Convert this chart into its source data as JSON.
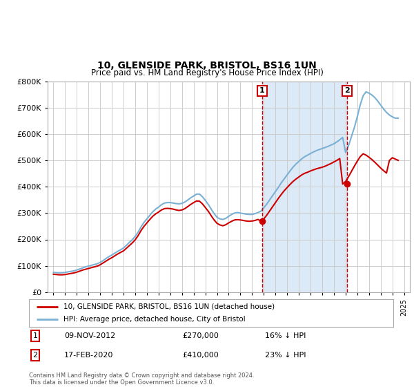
{
  "title": "10, GLENSIDE PARK, BRISTOL, BS16 1UN",
  "subtitle": "Price paid vs. HM Land Registry's House Price Index (HPI)",
  "legend_label_red": "10, GLENSIDE PARK, BRISTOL, BS16 1UN (detached house)",
  "legend_label_blue": "HPI: Average price, detached house, City of Bristol",
  "footnote": "Contains HM Land Registry data © Crown copyright and database right 2024.\nThis data is licensed under the Open Government Licence v3.0.",
  "sale1_date_label": "09-NOV-2012",
  "sale1_price": 270000,
  "sale1_pct": "16% ↓ HPI",
  "sale1_year": 2012.86,
  "sale2_date_label": "17-FEB-2020",
  "sale2_price": 410000,
  "sale2_pct": "23% ↓ HPI",
  "sale2_year": 2020.12,
  "ylim": [
    0,
    800000
  ],
  "xlim_left": 1994.5,
  "xlim_right": 2025.5,
  "background_color": "#ffffff",
  "plot_bg_color": "#ffffff",
  "grid_color": "#cccccc",
  "shade_color": "#dce9f7",
  "red_line_color": "#cc0000",
  "blue_line_color": "#7ab0d4",
  "vline_color": "#cc0000",
  "hpi_data_x": [
    1995.0,
    1995.25,
    1995.5,
    1995.75,
    1996.0,
    1996.25,
    1996.5,
    1996.75,
    1997.0,
    1997.25,
    1997.5,
    1997.75,
    1998.0,
    1998.25,
    1998.5,
    1998.75,
    1999.0,
    1999.25,
    1999.5,
    1999.75,
    2000.0,
    2000.25,
    2000.5,
    2000.75,
    2001.0,
    2001.25,
    2001.5,
    2001.75,
    2002.0,
    2002.25,
    2002.5,
    2002.75,
    2003.0,
    2003.25,
    2003.5,
    2003.75,
    2004.0,
    2004.25,
    2004.5,
    2004.75,
    2005.0,
    2005.25,
    2005.5,
    2005.75,
    2006.0,
    2006.25,
    2006.5,
    2006.75,
    2007.0,
    2007.25,
    2007.5,
    2007.75,
    2008.0,
    2008.25,
    2008.5,
    2008.75,
    2009.0,
    2009.25,
    2009.5,
    2009.75,
    2010.0,
    2010.25,
    2010.5,
    2010.75,
    2011.0,
    2011.25,
    2011.5,
    2011.75,
    2012.0,
    2012.25,
    2012.5,
    2012.75,
    2013.0,
    2013.25,
    2013.5,
    2013.75,
    2014.0,
    2014.25,
    2014.5,
    2014.75,
    2015.0,
    2015.25,
    2015.5,
    2015.75,
    2016.0,
    2016.25,
    2016.5,
    2016.75,
    2017.0,
    2017.25,
    2017.5,
    2017.75,
    2018.0,
    2018.25,
    2018.5,
    2018.75,
    2019.0,
    2019.25,
    2019.5,
    2019.75,
    2020.0,
    2020.25,
    2020.5,
    2020.75,
    2021.0,
    2021.25,
    2021.5,
    2021.75,
    2022.0,
    2022.25,
    2022.5,
    2022.75,
    2023.0,
    2023.25,
    2023.5,
    2023.75,
    2024.0,
    2024.25,
    2024.5
  ],
  "hpi_data_y": [
    75000,
    74000,
    73500,
    74000,
    75000,
    77000,
    79000,
    81000,
    84000,
    88000,
    92000,
    96000,
    99000,
    102000,
    105000,
    108000,
    113000,
    120000,
    128000,
    135000,
    141000,
    148000,
    155000,
    161000,
    168000,
    178000,
    189000,
    199000,
    212000,
    228000,
    248000,
    265000,
    278000,
    292000,
    305000,
    315000,
    323000,
    332000,
    338000,
    340000,
    340000,
    338000,
    336000,
    335000,
    337000,
    342000,
    350000,
    358000,
    365000,
    372000,
    372000,
    362000,
    348000,
    333000,
    315000,
    298000,
    284000,
    278000,
    276000,
    280000,
    288000,
    295000,
    300000,
    302000,
    300000,
    298000,
    296000,
    295000,
    295000,
    298000,
    302000,
    307000,
    320000,
    334000,
    350000,
    366000,
    382000,
    398000,
    415000,
    430000,
    445000,
    460000,
    474000,
    486000,
    496000,
    506000,
    514000,
    520000,
    526000,
    532000,
    537000,
    541000,
    545000,
    549000,
    553000,
    558000,
    563000,
    570000,
    578000,
    587000,
    530000,
    555000,
    590000,
    625000,
    665000,
    710000,
    745000,
    760000,
    755000,
    748000,
    738000,
    725000,
    710000,
    695000,
    682000,
    672000,
    665000,
    660000,
    660000
  ],
  "price_data_x": [
    1995.0,
    1995.25,
    1995.5,
    1995.75,
    1996.0,
    1996.25,
    1996.5,
    1996.75,
    1997.0,
    1997.25,
    1997.5,
    1997.75,
    1998.0,
    1998.25,
    1998.5,
    1998.75,
    1999.0,
    1999.25,
    1999.5,
    1999.75,
    2000.0,
    2000.25,
    2000.5,
    2000.75,
    2001.0,
    2001.25,
    2001.5,
    2001.75,
    2002.0,
    2002.25,
    2002.5,
    2002.75,
    2003.0,
    2003.25,
    2003.5,
    2003.75,
    2004.0,
    2004.25,
    2004.5,
    2004.75,
    2005.0,
    2005.25,
    2005.5,
    2005.75,
    2006.0,
    2006.25,
    2006.5,
    2006.75,
    2007.0,
    2007.25,
    2007.5,
    2007.75,
    2008.0,
    2008.25,
    2008.5,
    2008.75,
    2009.0,
    2009.25,
    2009.5,
    2009.75,
    2010.0,
    2010.25,
    2010.5,
    2010.75,
    2011.0,
    2011.25,
    2011.5,
    2011.75,
    2012.0,
    2012.25,
    2012.5,
    2012.75,
    2013.0,
    2013.25,
    2013.5,
    2013.75,
    2014.0,
    2014.25,
    2014.5,
    2014.75,
    2015.0,
    2015.25,
    2015.5,
    2015.75,
    2016.0,
    2016.25,
    2016.5,
    2016.75,
    2017.0,
    2017.25,
    2017.5,
    2017.75,
    2018.0,
    2018.25,
    2018.5,
    2018.75,
    2019.0,
    2019.25,
    2019.5,
    2019.75,
    2020.0,
    2020.25,
    2020.5,
    2020.75,
    2021.0,
    2021.25,
    2021.5,
    2021.75,
    2022.0,
    2022.25,
    2022.5,
    2022.75,
    2023.0,
    2023.25,
    2023.5,
    2023.75,
    2024.0,
    2024.25,
    2024.5
  ],
  "price_data_y": [
    68000,
    67000,
    66000,
    66000,
    67000,
    69000,
    71000,
    73000,
    76000,
    80000,
    84000,
    87000,
    90000,
    93000,
    96000,
    99000,
    104000,
    111000,
    118000,
    125000,
    131000,
    138000,
    145000,
    151000,
    157000,
    167000,
    177000,
    187000,
    199000,
    215000,
    234000,
    250000,
    263000,
    276000,
    288000,
    297000,
    304000,
    312000,
    317000,
    318000,
    317000,
    315000,
    312000,
    310000,
    312000,
    317000,
    325000,
    333000,
    340000,
    346000,
    345000,
    335000,
    321000,
    307000,
    290000,
    274000,
    261000,
    255000,
    252000,
    256000,
    263000,
    269000,
    274000,
    275000,
    274000,
    272000,
    270000,
    269000,
    270000,
    272000,
    276000,
    270000,
    278000,
    292000,
    308000,
    324000,
    340000,
    356000,
    371000,
    385000,
    397000,
    409000,
    420000,
    429000,
    437000,
    445000,
    451000,
    455000,
    460000,
    464000,
    468000,
    471000,
    474000,
    478000,
    483000,
    488000,
    494000,
    500000,
    507000,
    410000,
    420000,
    438000,
    458000,
    478000,
    497000,
    514000,
    525000,
    520000,
    512000,
    503000,
    493000,
    482000,
    471000,
    461000,
    452000,
    500000,
    510000,
    505000,
    500000
  ]
}
